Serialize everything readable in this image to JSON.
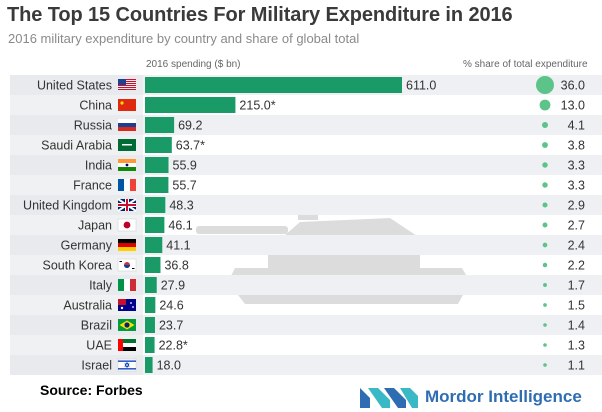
{
  "title": "The Top 15 Countries For Military Expenditure in 2016",
  "subtitle": "2016 military expenditure by country and share of global total",
  "column_headers": {
    "spending": "2016 spending ($ bn)",
    "share": "% share of total expenditure"
  },
  "source": "Source: Forbes",
  "logo_text": "Mordor Intelligence",
  "colors": {
    "bar": "#1a9a66",
    "dot": "#5cc489",
    "row_alt": "#eef0f3",
    "label_box": "#e3e6ea",
    "logo_blue": "#2f6db3",
    "logo_teal": "#39b8c6"
  },
  "chart_data": {
    "type": "bar",
    "orientation": "horizontal",
    "title": "The Top 15 Countries For Military Expenditure in 2016",
    "subtitle": "2016 military expenditure by country and share of global total",
    "categories": [
      "United States",
      "China",
      "Russia",
      "Saudi Arabia",
      "India",
      "France",
      "United Kingdom",
      "Japan",
      "Germany",
      "South Korea",
      "Italy",
      "Australia",
      "Brazil",
      "UAE",
      "Israel"
    ],
    "series": [
      {
        "name": "2016 spending ($ bn)",
        "values": [
          611.0,
          215.0,
          69.2,
          63.7,
          55.9,
          55.7,
          48.3,
          46.1,
          41.1,
          36.8,
          27.9,
          24.6,
          23.7,
          22.8,
          18.0
        ],
        "labels": [
          "611.0",
          "215.0*",
          "69.2",
          "63.7*",
          "55.9",
          "55.7",
          "48.3",
          "46.1",
          "41.1",
          "36.8",
          "27.9",
          "24.6",
          "23.7",
          "22.8*",
          "18.0"
        ]
      },
      {
        "name": "% share of total expenditure",
        "values": [
          36.0,
          13.0,
          4.1,
          3.8,
          3.3,
          3.3,
          2.9,
          2.7,
          2.4,
          2.2,
          1.7,
          1.5,
          1.4,
          1.3,
          1.1
        ],
        "labels": [
          "36.0",
          "13.0",
          "4.1",
          "3.8",
          "3.3",
          "3.3",
          "2.9",
          "2.7",
          "2.4",
          "2.2",
          "1.7",
          "1.5",
          "1.4",
          "1.3",
          "1.1"
        ]
      }
    ],
    "flags": [
      "us-flag-icon",
      "china-flag-icon",
      "russia-flag-icon",
      "saudi-arabia-flag-icon",
      "india-flag-icon",
      "france-flag-icon",
      "uk-flag-icon",
      "japan-flag-icon",
      "germany-flag-icon",
      "south-korea-flag-icon",
      "italy-flag-icon",
      "australia-flag-icon",
      "brazil-flag-icon",
      "uae-flag-icon",
      "israel-flag-icon"
    ],
    "xlim": [
      0,
      650
    ],
    "grid": false,
    "legend": "none"
  }
}
